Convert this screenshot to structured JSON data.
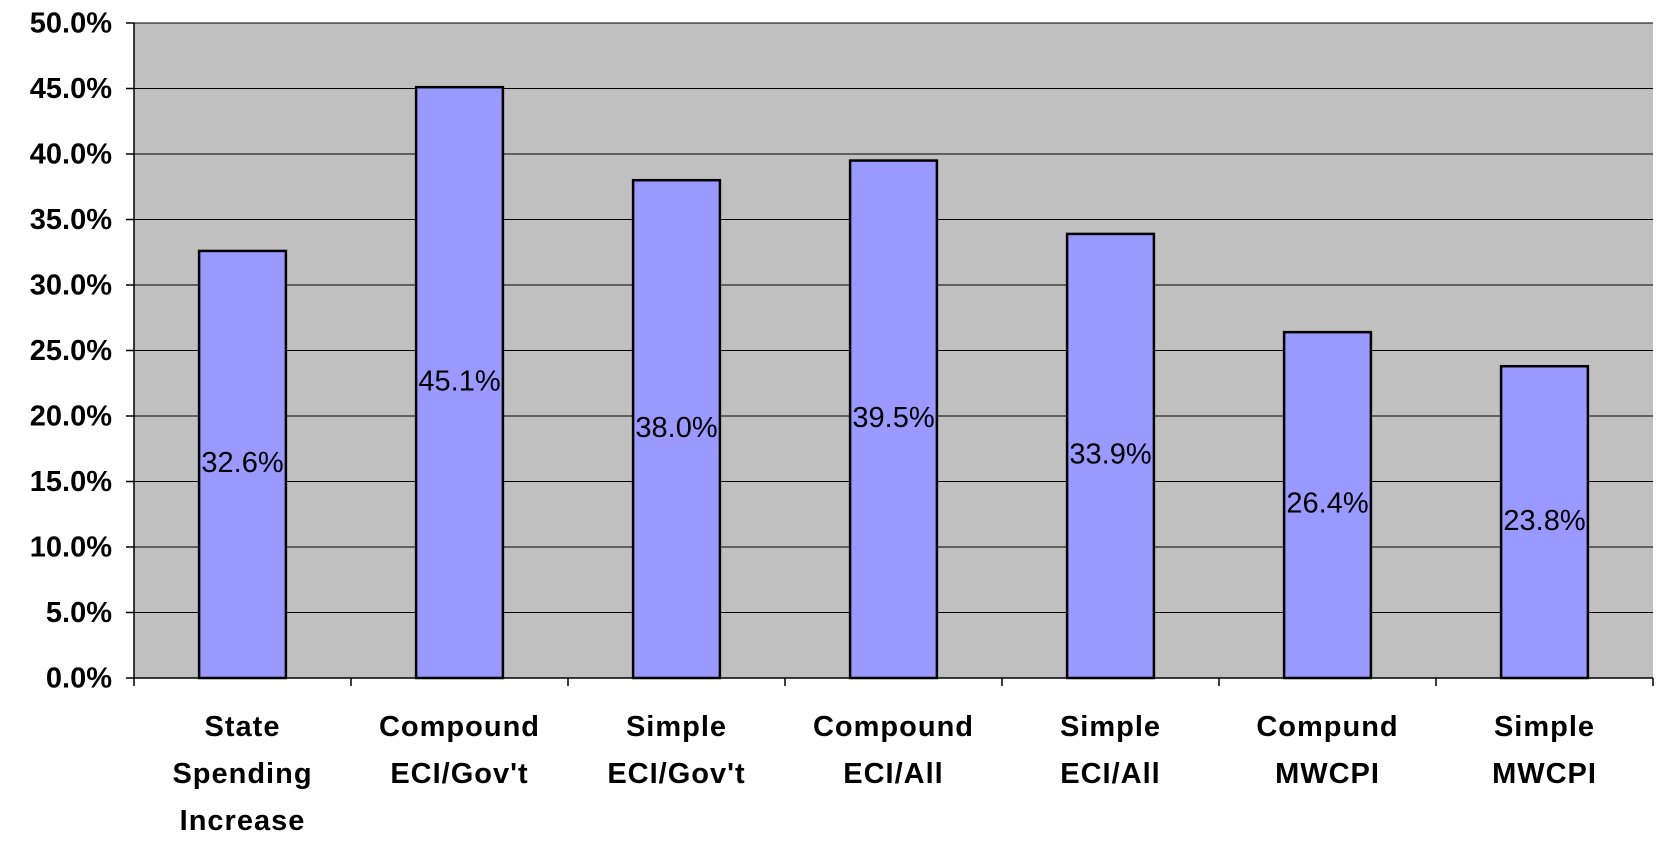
{
  "chart_data": {
    "type": "bar",
    "categories": [
      "State Spending Increase",
      "Compound ECI/Gov't",
      "Simple ECI/Gov't",
      "Compound ECI/All",
      "Simple ECI/All",
      "Compund MWCPI",
      "Simple MWCPI"
    ],
    "values": [
      32.6,
      45.1,
      38.0,
      39.5,
      33.9,
      26.4,
      23.8
    ],
    "value_labels": [
      "32.6%",
      "45.1%",
      "38.0%",
      "39.5%",
      "33.9%",
      "26.4%",
      "23.8%"
    ],
    "color": "#9999ff",
    "ylim": [
      0,
      50
    ],
    "yticks": [
      {
        "value": 0,
        "label": "0.0%"
      },
      {
        "value": 5,
        "label": "5.0%"
      },
      {
        "value": 10,
        "label": "10.0%"
      },
      {
        "value": 15,
        "label": "15.0%"
      },
      {
        "value": 20,
        "label": "20.0%"
      },
      {
        "value": 25,
        "label": "25.0%"
      },
      {
        "value": 30,
        "label": "30.0%"
      },
      {
        "value": 35,
        "label": "35.0%"
      },
      {
        "value": 40,
        "label": "40.0%"
      },
      {
        "value": 45,
        "label": "45.0%"
      },
      {
        "value": 50,
        "label": "50.0%"
      }
    ],
    "grid": true
  }
}
